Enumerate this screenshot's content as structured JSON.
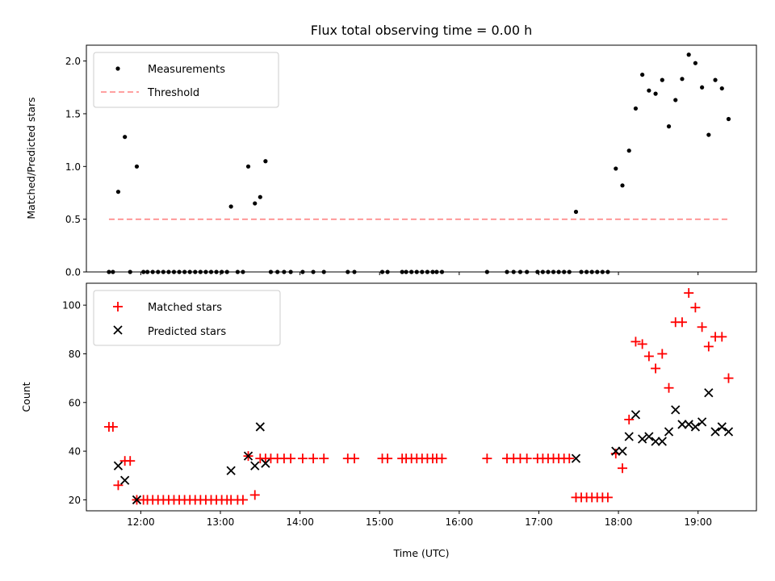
{
  "chart_data": [
    {
      "type": "scatter",
      "title": "Flux total observing time = 0.00 h",
      "xlabel": "",
      "ylabel": "Matched/Predicted stars",
      "ylim": [
        0,
        2.15
      ],
      "yticks": [
        "0.0",
        "0.5",
        "1.0",
        "1.5",
        "2.0"
      ],
      "xlim": [
        "11:19",
        "19:44"
      ],
      "legend": {
        "position": "top-left",
        "entries": [
          "Measurements",
          "Threshold"
        ]
      },
      "series": [
        {
          "name": "Measurements",
          "points": [
            [
              "11:36",
              0
            ],
            [
              "11:39",
              0
            ],
            [
              "11:43",
              0.76
            ],
            [
              "11:48",
              1.28
            ],
            [
              "11:52",
              0
            ],
            [
              "11:57",
              1.0
            ],
            [
              "12:02",
              0
            ],
            [
              "12:05",
              0
            ],
            [
              "12:09",
              0
            ],
            [
              "12:13",
              0
            ],
            [
              "12:17",
              0
            ],
            [
              "12:21",
              0
            ],
            [
              "12:25",
              0
            ],
            [
              "12:29",
              0
            ],
            [
              "12:33",
              0
            ],
            [
              "12:37",
              0
            ],
            [
              "12:41",
              0
            ],
            [
              "12:45",
              0
            ],
            [
              "12:49",
              0
            ],
            [
              "12:53",
              0
            ],
            [
              "12:57",
              0
            ],
            [
              "13:01",
              0
            ],
            [
              "13:05",
              0
            ],
            [
              "13:08",
              0.62
            ],
            [
              "13:13",
              0
            ],
            [
              "13:17",
              0
            ],
            [
              "13:21",
              1.0
            ],
            [
              "13:26",
              0.65
            ],
            [
              "13:30",
              0.71
            ],
            [
              "13:34",
              1.05
            ],
            [
              "13:38",
              0
            ],
            [
              "13:43",
              0
            ],
            [
              "13:48",
              0
            ],
            [
              "13:53",
              0
            ],
            [
              "14:02",
              0
            ],
            [
              "14:10",
              0
            ],
            [
              "14:18",
              0
            ],
            [
              "14:36",
              0
            ],
            [
              "14:41",
              0
            ],
            [
              "15:02",
              0
            ],
            [
              "15:06",
              0
            ],
            [
              "15:17",
              0
            ],
            [
              "15:20",
              0
            ],
            [
              "15:24",
              0
            ],
            [
              "15:28",
              0
            ],
            [
              "15:32",
              0
            ],
            [
              "15:36",
              0
            ],
            [
              "15:40",
              0
            ],
            [
              "15:43",
              0
            ],
            [
              "15:47",
              0
            ],
            [
              "16:21",
              0
            ],
            [
              "16:36",
              0
            ],
            [
              "16:41",
              0
            ],
            [
              "16:46",
              0
            ],
            [
              "16:51",
              0
            ],
            [
              "16:59",
              0
            ],
            [
              "17:03",
              0
            ],
            [
              "17:07",
              0
            ],
            [
              "17:11",
              0
            ],
            [
              "17:15",
              0
            ],
            [
              "17:19",
              0
            ],
            [
              "17:23",
              0
            ],
            [
              "17:28",
              0.57
            ],
            [
              "17:32",
              0
            ],
            [
              "17:36",
              0
            ],
            [
              "17:40",
              0
            ],
            [
              "17:44",
              0
            ],
            [
              "17:48",
              0
            ],
            [
              "17:52",
              0
            ],
            [
              "17:58",
              0.98
            ],
            [
              "18:03",
              0.82
            ],
            [
              "18:08",
              1.15
            ],
            [
              "18:13",
              1.55
            ],
            [
              "18:18",
              1.87
            ],
            [
              "18:23",
              1.72
            ],
            [
              "18:28",
              1.69
            ],
            [
              "18:33",
              1.82
            ],
            [
              "18:38",
              1.38
            ],
            [
              "18:43",
              1.63
            ],
            [
              "18:48",
              1.83
            ],
            [
              "18:53",
              2.06
            ],
            [
              "18:58",
              1.98
            ],
            [
              "19:03",
              1.75
            ],
            [
              "19:08",
              1.3
            ],
            [
              "19:13",
              1.82
            ],
            [
              "19:18",
              1.74
            ],
            [
              "19:23",
              1.45
            ]
          ]
        },
        {
          "name": "Threshold",
          "style": "dashed",
          "color": "#ff8080",
          "points": [
            [
              "11:36",
              0.5
            ],
            [
              "19:23",
              0.5
            ]
          ]
        }
      ]
    },
    {
      "type": "scatter",
      "title": "",
      "xlabel": "Time (UTC)",
      "ylabel": "Count",
      "ylim": [
        15.5,
        109
      ],
      "yticks": [
        "20",
        "40",
        "60",
        "80",
        "100"
      ],
      "xlim": [
        "11:19",
        "19:44"
      ],
      "xticks": [
        "12:00",
        "13:00",
        "14:00",
        "15:00",
        "16:00",
        "17:00",
        "18:00",
        "19:00"
      ],
      "legend": {
        "position": "top-left",
        "entries": [
          "Matched stars",
          "Predicted stars"
        ]
      },
      "series": [
        {
          "name": "Matched stars",
          "marker": "plus",
          "color": "#ff0000",
          "points": [
            [
              "11:36",
              50
            ],
            [
              "11:39",
              50
            ],
            [
              "11:43",
              26
            ],
            [
              "11:48",
              36
            ],
            [
              "11:52",
              36
            ],
            [
              "11:57",
              20
            ],
            [
              "12:02",
              20
            ],
            [
              "12:05",
              20
            ],
            [
              "12:09",
              20
            ],
            [
              "12:13",
              20
            ],
            [
              "12:17",
              20
            ],
            [
              "12:21",
              20
            ],
            [
              "12:25",
              20
            ],
            [
              "12:29",
              20
            ],
            [
              "12:33",
              20
            ],
            [
              "12:37",
              20
            ],
            [
              "12:41",
              20
            ],
            [
              "12:45",
              20
            ],
            [
              "12:49",
              20
            ],
            [
              "12:53",
              20
            ],
            [
              "12:57",
              20
            ],
            [
              "13:01",
              20
            ],
            [
              "13:05",
              20
            ],
            [
              "13:08",
              20
            ],
            [
              "13:13",
              20
            ],
            [
              "13:17",
              20
            ],
            [
              "13:21",
              38
            ],
            [
              "13:26",
              22
            ],
            [
              "13:30",
              37
            ],
            [
              "13:34",
              37
            ],
            [
              "13:38",
              37
            ],
            [
              "13:43",
              37
            ],
            [
              "13:48",
              37
            ],
            [
              "13:53",
              37
            ],
            [
              "14:02",
              37
            ],
            [
              "14:10",
              37
            ],
            [
              "14:18",
              37
            ],
            [
              "14:36",
              37
            ],
            [
              "14:41",
              37
            ],
            [
              "15:02",
              37
            ],
            [
              "15:06",
              37
            ],
            [
              "15:17",
              37
            ],
            [
              "15:20",
              37
            ],
            [
              "15:24",
              37
            ],
            [
              "15:28",
              37
            ],
            [
              "15:32",
              37
            ],
            [
              "15:36",
              37
            ],
            [
              "15:40",
              37
            ],
            [
              "15:43",
              37
            ],
            [
              "15:47",
              37
            ],
            [
              "16:21",
              37
            ],
            [
              "16:36",
              37
            ],
            [
              "16:41",
              37
            ],
            [
              "16:46",
              37
            ],
            [
              "16:51",
              37
            ],
            [
              "16:59",
              37
            ],
            [
              "17:03",
              37
            ],
            [
              "17:07",
              37
            ],
            [
              "17:11",
              37
            ],
            [
              "17:15",
              37
            ],
            [
              "17:19",
              37
            ],
            [
              "17:23",
              37
            ],
            [
              "17:28",
              21
            ],
            [
              "17:32",
              21
            ],
            [
              "17:36",
              21
            ],
            [
              "17:40",
              21
            ],
            [
              "17:44",
              21
            ],
            [
              "17:48",
              21
            ],
            [
              "17:52",
              21
            ],
            [
              "17:58",
              39
            ],
            [
              "18:03",
              33
            ],
            [
              "18:08",
              53
            ],
            [
              "18:13",
              85
            ],
            [
              "18:18",
              84
            ],
            [
              "18:23",
              79
            ],
            [
              "18:28",
              74
            ],
            [
              "18:33",
              80
            ],
            [
              "18:38",
              66
            ],
            [
              "18:43",
              93
            ],
            [
              "18:48",
              93
            ],
            [
              "18:53",
              105
            ],
            [
              "18:58",
              99
            ],
            [
              "19:03",
              91
            ],
            [
              "19:08",
              83
            ],
            [
              "19:13",
              87
            ],
            [
              "19:18",
              87
            ],
            [
              "19:23",
              70
            ]
          ]
        },
        {
          "name": "Predicted stars",
          "marker": "x",
          "color": "#000000",
          "points": [
            [
              "11:43",
              34
            ],
            [
              "11:48",
              28
            ],
            [
              "11:57",
              20
            ],
            [
              "13:08",
              32
            ],
            [
              "13:21",
              38
            ],
            [
              "13:26",
              34
            ],
            [
              "13:30",
              50
            ],
            [
              "13:34",
              35
            ],
            [
              "17:28",
              37
            ],
            [
              "17:58",
              40
            ],
            [
              "18:03",
              40
            ],
            [
              "18:08",
              46
            ],
            [
              "18:13",
              55
            ],
            [
              "18:18",
              45
            ],
            [
              "18:23",
              46
            ],
            [
              "18:28",
              44
            ],
            [
              "18:33",
              44
            ],
            [
              "18:38",
              48
            ],
            [
              "18:43",
              57
            ],
            [
              "18:48",
              51
            ],
            [
              "18:53",
              51
            ],
            [
              "18:58",
              50
            ],
            [
              "19:03",
              52
            ],
            [
              "19:08",
              64
            ],
            [
              "19:13",
              48
            ],
            [
              "19:18",
              50
            ],
            [
              "19:23",
              48
            ]
          ]
        }
      ]
    }
  ]
}
